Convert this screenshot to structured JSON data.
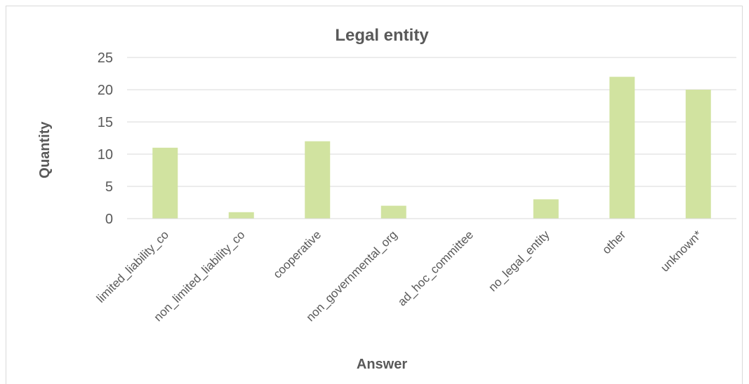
{
  "chart_data": {
    "type": "bar",
    "title": "Legal entity",
    "xlabel": "Answer",
    "ylabel": "Quantity",
    "categories": [
      "limited_liability_co",
      "non_limited_liability_co",
      "cooperative",
      "non_governmental_org",
      "ad_hoc_committee",
      "no_legal_entity",
      "other",
      "unknown*"
    ],
    "values": [
      11,
      1,
      12,
      2,
      0,
      3,
      22,
      20
    ],
    "ylim": [
      0,
      25
    ],
    "yticks": [
      0,
      5,
      10,
      15,
      20,
      25
    ],
    "grid": true,
    "legend": "none",
    "bar_color": "#d1e3a0"
  }
}
